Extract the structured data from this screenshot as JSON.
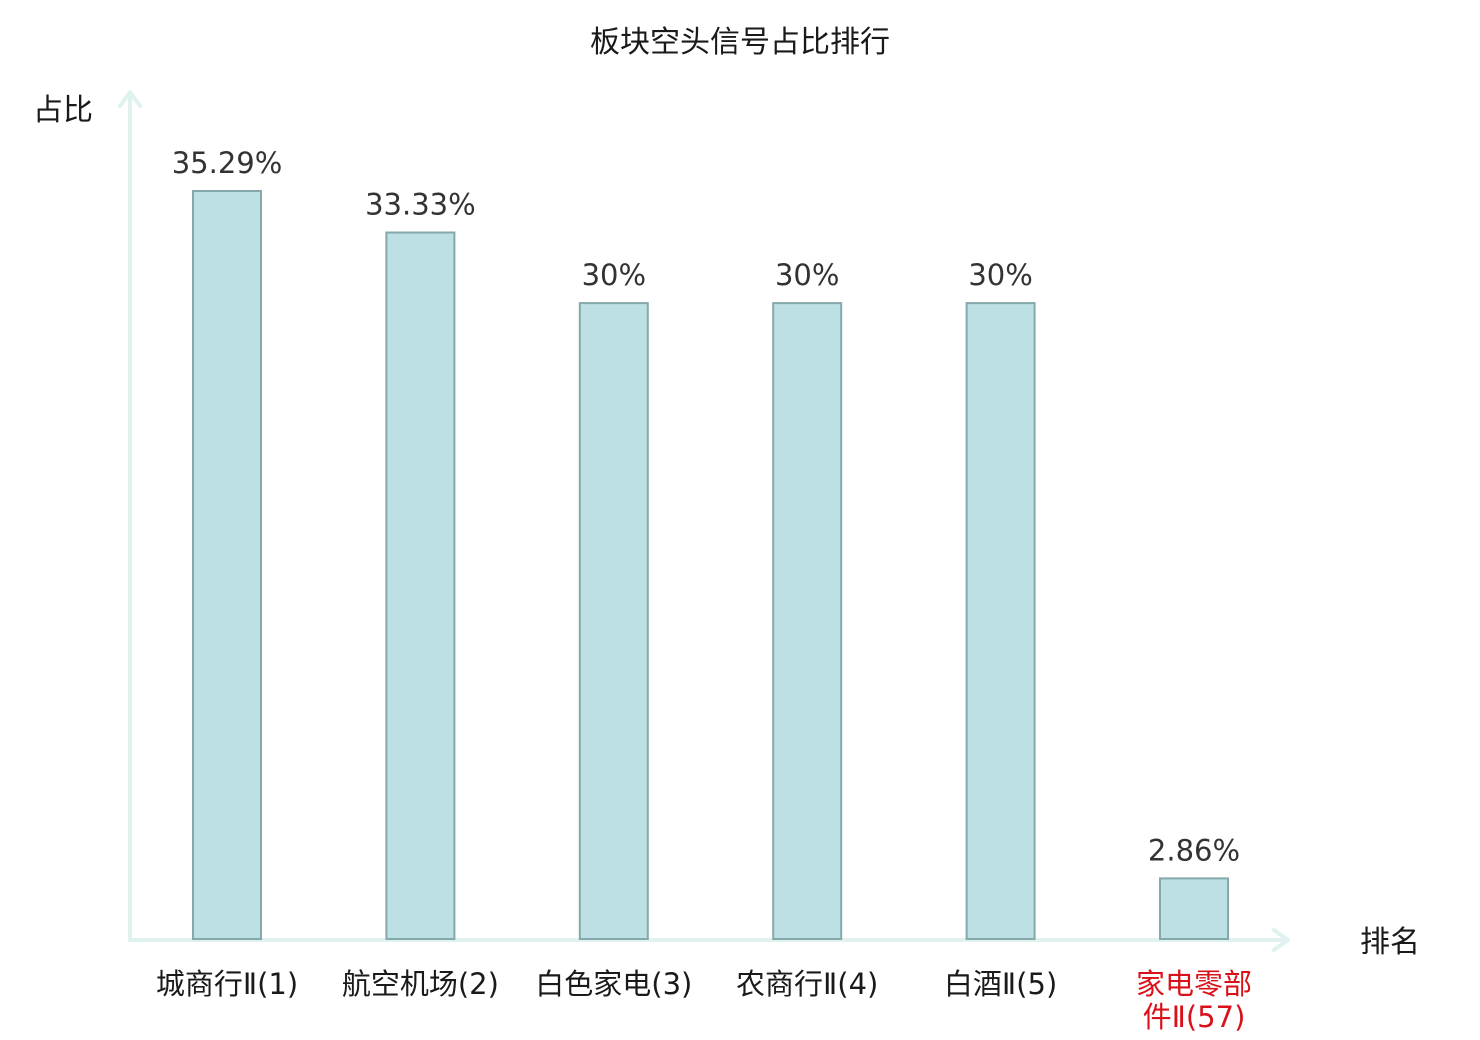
{
  "chart_data": {
    "type": "bar",
    "title": "板块空头信号占比排行",
    "ylabel": "占比",
    "xlabel": "排名",
    "categories": [
      {
        "lines": [
          "城商行Ⅱ(1)"
        ],
        "highlight": false
      },
      {
        "lines": [
          "航空机场(2)"
        ],
        "highlight": false
      },
      {
        "lines": [
          "白色家电(3)"
        ],
        "highlight": false
      },
      {
        "lines": [
          "农商行Ⅱ(4)"
        ],
        "highlight": false
      },
      {
        "lines": [
          "白酒Ⅱ(5)"
        ],
        "highlight": false
      },
      {
        "lines": [
          "家电零部",
          "件Ⅱ(57)"
        ],
        "highlight": true
      }
    ],
    "values": [
      35.29,
      33.33,
      30,
      30,
      30,
      2.86
    ],
    "value_labels": [
      "35.29%",
      "33.33%",
      "30%",
      "30%",
      "30%",
      "2.86%"
    ],
    "ylim": [
      0,
      35.29
    ],
    "grid": false,
    "legend": "none",
    "colors": {
      "bar_fill": "#bce0e3",
      "bar_stroke": "#85a8aa",
      "axis": "#dff2f0",
      "label": "#1a1a1a",
      "value_text": "#333333",
      "highlight_text": "#d9121a"
    }
  }
}
